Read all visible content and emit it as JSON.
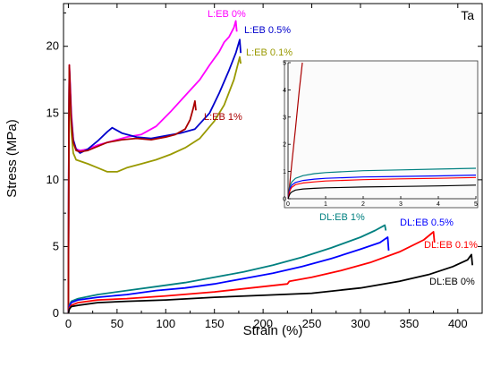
{
  "chart_data": {
    "type": "line",
    "main": {
      "xlabel": "Strain (%)",
      "ylabel": "Stress (MPa)",
      "xlim": [
        -5,
        425
      ],
      "ylim": [
        0,
        23.2
      ],
      "xticks": [
        0,
        50,
        100,
        150,
        200,
        250,
        300,
        350,
        400
      ],
      "yticks": [
        0,
        5,
        10,
        15,
        20
      ],
      "corner_label": "Ta",
      "series": [
        {
          "name": "L:EB 0%",
          "color": "#ff00ff",
          "x": [
            0,
            0.5,
            1,
            2,
            3,
            5,
            8,
            12,
            20,
            30,
            45,
            60,
            75,
            90,
            105,
            120,
            135,
            145,
            155,
            160,
            165,
            170,
            172,
            173
          ],
          "y": [
            0,
            14,
            18.6,
            17,
            15,
            13,
            12.3,
            12.2,
            12.3,
            12.6,
            12.9,
            13.2,
            13.4,
            14,
            15.1,
            16.3,
            17.5,
            18.6,
            19.6,
            20.3,
            20.7,
            21.4,
            21.9,
            21.1
          ]
        },
        {
          "name": "L:EB 0.5%",
          "color": "#0000cc",
          "x": [
            0,
            0.5,
            1,
            2,
            3,
            5,
            8,
            12,
            20,
            30,
            40,
            45,
            55,
            70,
            85,
            100,
            115,
            130,
            145,
            155,
            165,
            172,
            176,
            177
          ],
          "y": [
            0,
            14,
            18.4,
            16.5,
            14.7,
            13,
            12.3,
            12,
            12.3,
            12.9,
            13.6,
            13.9,
            13.5,
            13.2,
            13.1,
            13.3,
            13.5,
            13.8,
            15,
            16.5,
            18.2,
            19.5,
            20.5,
            19.5
          ]
        },
        {
          "name": "L:EB 0.1%",
          "color": "#999900",
          "x": [
            0,
            0.5,
            1,
            2,
            3,
            5,
            8,
            12,
            20,
            30,
            40,
            50,
            60,
            75,
            90,
            105,
            120,
            135,
            150,
            160,
            170,
            176,
            177
          ],
          "y": [
            0,
            13,
            18.3,
            15.5,
            13.6,
            12,
            11.5,
            11.4,
            11.2,
            10.9,
            10.6,
            10.6,
            10.9,
            11.2,
            11.5,
            11.9,
            12.4,
            13.1,
            14.4,
            15.6,
            17.5,
            19.2,
            18.7
          ]
        },
        {
          "name": "L:EB 1%",
          "color": "#aa0000",
          "x": [
            0,
            0.5,
            1,
            2,
            3,
            5,
            8,
            12,
            20,
            30,
            40,
            55,
            70,
            85,
            100,
            110,
            120,
            125,
            128,
            130,
            131
          ],
          "y": [
            0,
            14,
            18.6,
            16.5,
            14.5,
            12.8,
            12.2,
            12.1,
            12.2,
            12.5,
            12.8,
            13,
            13.1,
            13,
            13.2,
            13.4,
            13.8,
            14.5,
            15.3,
            15.9,
            15.2
          ]
        },
        {
          "name": "DL:EB 1%",
          "color": "#008080",
          "x": [
            0,
            1,
            3,
            10,
            30,
            60,
            90,
            120,
            150,
            180,
            210,
            240,
            270,
            300,
            315,
            325,
            326
          ],
          "y": [
            0,
            0.6,
            0.9,
            1.1,
            1.4,
            1.7,
            2,
            2.3,
            2.7,
            3.1,
            3.6,
            4.2,
            4.9,
            5.7,
            6.2,
            6.6,
            6.2
          ]
        },
        {
          "name": "DL:EB 0.5%",
          "color": "#0000ff",
          "x": [
            0,
            1,
            3,
            10,
            30,
            60,
            90,
            120,
            150,
            180,
            210,
            240,
            270,
            300,
            320,
            328,
            329
          ],
          "y": [
            0,
            0.5,
            0.8,
            1,
            1.2,
            1.4,
            1.7,
            1.9,
            2.2,
            2.6,
            3,
            3.5,
            4.1,
            4.8,
            5.3,
            5.7,
            4.7
          ]
        },
        {
          "name": "DL:EB 0.1%",
          "color": "#ff0000",
          "x": [
            0,
            1,
            3,
            10,
            30,
            60,
            100,
            150,
            200,
            225,
            227,
            250,
            280,
            310,
            340,
            365,
            375,
            376
          ],
          "y": [
            0,
            0.4,
            0.6,
            0.8,
            1,
            1.1,
            1.3,
            1.6,
            2,
            2.2,
            2.4,
            2.7,
            3.2,
            3.8,
            4.6,
            5.5,
            6.1,
            5.3
          ]
        },
        {
          "name": "DL:EB 0%",
          "color": "#000000",
          "x": [
            0,
            1,
            3,
            10,
            30,
            60,
            100,
            150,
            200,
            250,
            300,
            340,
            370,
            395,
            410,
            414,
            415
          ],
          "y": [
            0,
            0.3,
            0.5,
            0.6,
            0.8,
            0.9,
            1,
            1.2,
            1.35,
            1.5,
            1.9,
            2.4,
            2.9,
            3.5,
            4,
            4.4,
            3.6
          ]
        }
      ]
    },
    "inset": {
      "xlim": [
        0,
        5
      ],
      "ylim": [
        0,
        5
      ],
      "xticks": [
        0,
        1,
        2,
        3,
        4,
        5
      ],
      "yticks": [
        0,
        1,
        2,
        3,
        4,
        5
      ],
      "series": [
        {
          "name": "L:EB",
          "color": "#aa0000",
          "x": [
            0,
            0.05,
            0.1,
            0.2,
            0.3,
            0.38
          ],
          "y": [
            0,
            0.6,
            1.3,
            2.6,
            4,
            5
          ]
        },
        {
          "name": "DL:EB 1%",
          "color": "#008080",
          "x": [
            0,
            0.03,
            0.06,
            0.1,
            0.2,
            0.4,
            0.7,
            1,
            2,
            3,
            4,
            5
          ],
          "y": [
            0,
            0.3,
            0.5,
            0.62,
            0.75,
            0.85,
            0.92,
            0.96,
            1.03,
            1.06,
            1.09,
            1.12
          ]
        },
        {
          "name": "DL:EB 0.5%",
          "color": "#0000ff",
          "x": [
            0,
            0.03,
            0.06,
            0.1,
            0.2,
            0.4,
            0.7,
            1,
            2,
            3,
            4,
            5
          ],
          "y": [
            0,
            0.25,
            0.4,
            0.5,
            0.6,
            0.67,
            0.72,
            0.75,
            0.8,
            0.82,
            0.84,
            0.87
          ]
        },
        {
          "name": "DL:EB 0.1%",
          "color": "#ff0000",
          "x": [
            0,
            0.03,
            0.06,
            0.1,
            0.2,
            0.4,
            0.7,
            1,
            2,
            3,
            4,
            5
          ],
          "y": [
            0,
            0.2,
            0.33,
            0.42,
            0.52,
            0.58,
            0.62,
            0.65,
            0.7,
            0.73,
            0.75,
            0.78
          ]
        },
        {
          "name": "DL:EB 0%",
          "color": "#000000",
          "x": [
            0,
            0.03,
            0.06,
            0.1,
            0.2,
            0.4,
            0.7,
            1,
            2,
            3,
            4,
            5
          ],
          "y": [
            0,
            0.12,
            0.2,
            0.25,
            0.32,
            0.36,
            0.38,
            0.4,
            0.43,
            0.45,
            0.47,
            0.5
          ]
        }
      ]
    }
  }
}
